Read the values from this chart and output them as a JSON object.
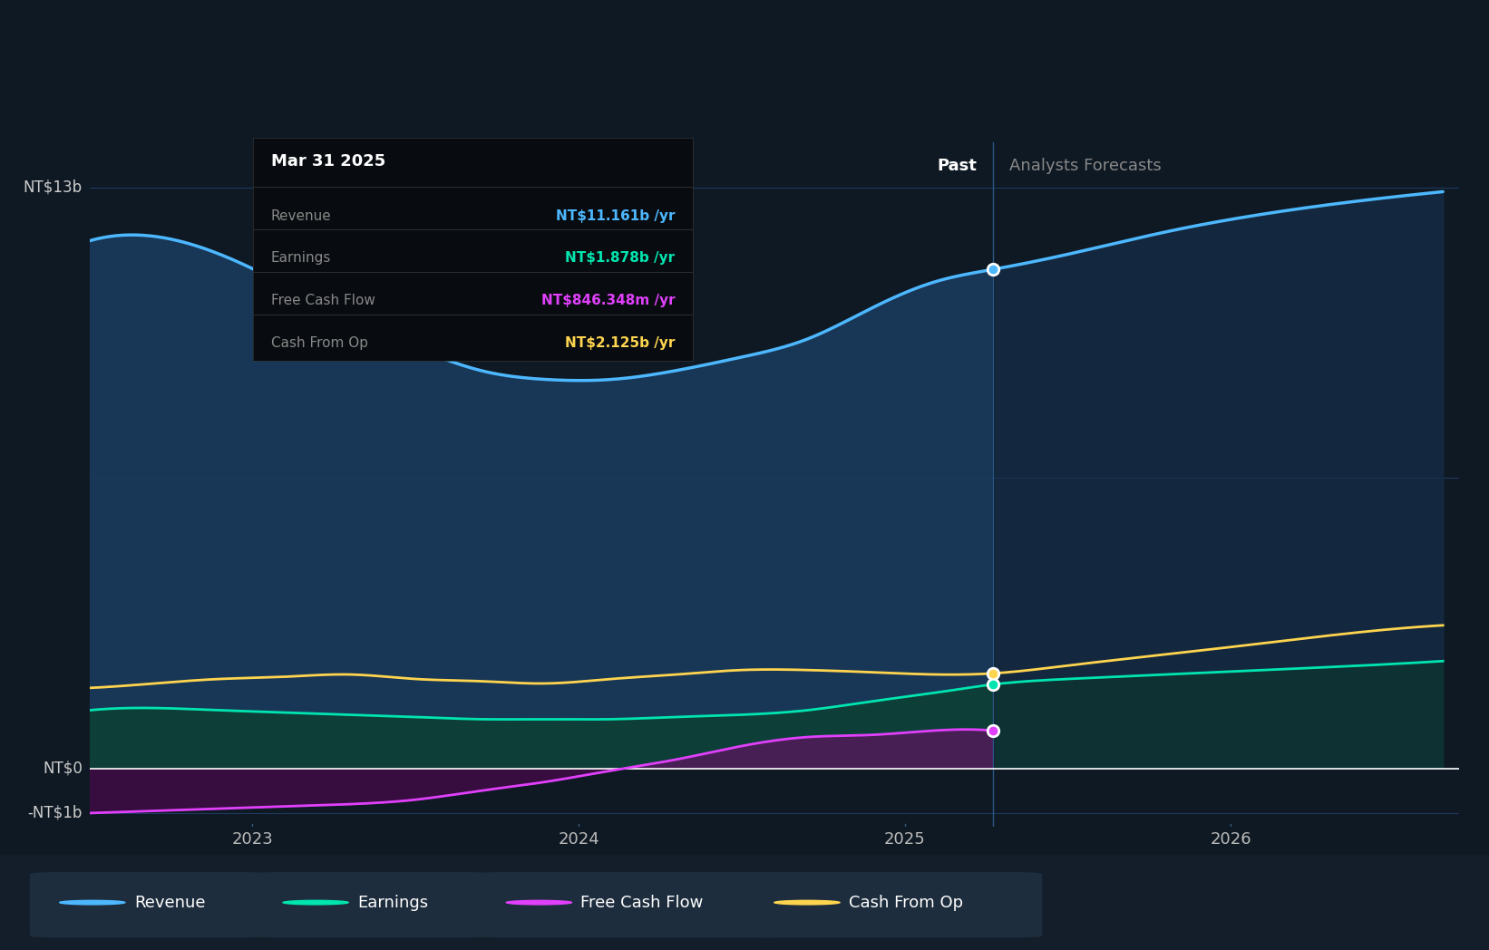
{
  "bg_color": "#0f1923",
  "plot_bg_color": "#0f1923",
  "grid_color": "#1e3a5f",
  "y_label_top": "NT$13b",
  "y_label_zero": "NT$0",
  "y_label_neg": "-NT$1b",
  "divider_x": 2025.27,
  "past_label": "Past",
  "forecast_label": "Analysts Forecasts",
  "tooltip_date": "Mar 31 2025",
  "tooltip_revenue": "NT$11.161b",
  "tooltip_earnings": "NT$1.878b",
  "tooltip_fcf": "NT$846.348m",
  "tooltip_cashop": "NT$2.125b",
  "revenue_color": "#4db8ff",
  "earnings_color": "#00e5b0",
  "fcf_color": "#e040fb",
  "cashop_color": "#ffd54f",
  "revenue_x": [
    2022.5,
    2022.7,
    2022.9,
    2023.1,
    2023.3,
    2023.5,
    2023.7,
    2023.9,
    2024.1,
    2024.3,
    2024.5,
    2024.7,
    2024.9,
    2025.1,
    2025.27,
    2025.5,
    2025.8,
    2026.1,
    2026.4,
    2026.65
  ],
  "revenue_y": [
    11.8,
    11.9,
    11.5,
    10.8,
    10.0,
    9.4,
    8.9,
    8.7,
    8.7,
    8.9,
    9.2,
    9.6,
    10.3,
    10.9,
    11.161,
    11.5,
    12.0,
    12.4,
    12.7,
    12.9
  ],
  "earnings_x": [
    2022.5,
    2022.7,
    2022.9,
    2023.1,
    2023.3,
    2023.5,
    2023.7,
    2023.9,
    2024.1,
    2024.3,
    2024.5,
    2024.7,
    2024.9,
    2025.1,
    2025.27,
    2025.5,
    2025.8,
    2026.1,
    2026.4,
    2026.65
  ],
  "earnings_y": [
    1.3,
    1.35,
    1.3,
    1.25,
    1.2,
    1.15,
    1.1,
    1.1,
    1.1,
    1.15,
    1.2,
    1.3,
    1.5,
    1.7,
    1.878,
    2.0,
    2.1,
    2.2,
    2.3,
    2.4
  ],
  "fcf_x": [
    2022.5,
    2022.7,
    2022.9,
    2023.1,
    2023.3,
    2023.5,
    2023.7,
    2023.9,
    2024.1,
    2024.3,
    2024.5,
    2024.7,
    2024.9,
    2025.1,
    2025.27
  ],
  "fcf_y": [
    -1.0,
    -0.95,
    -0.9,
    -0.85,
    -0.8,
    -0.7,
    -0.5,
    -0.3,
    -0.05,
    0.2,
    0.5,
    0.7,
    0.75,
    0.85,
    0.846
  ],
  "cashop_x": [
    2022.5,
    2022.7,
    2022.9,
    2023.1,
    2023.3,
    2023.5,
    2023.7,
    2023.9,
    2024.1,
    2024.3,
    2024.5,
    2024.7,
    2024.9,
    2025.1,
    2025.27,
    2025.5,
    2025.8,
    2026.1,
    2026.4,
    2026.65
  ],
  "cashop_y": [
    1.8,
    1.9,
    2.0,
    2.05,
    2.1,
    2.0,
    1.95,
    1.9,
    2.0,
    2.1,
    2.2,
    2.2,
    2.15,
    2.1,
    2.125,
    2.3,
    2.55,
    2.8,
    3.05,
    3.2
  ],
  "ylim_min": -1.3,
  "ylim_max": 14.0,
  "xlim_min": 2022.5,
  "xlim_max": 2026.7,
  "legend_items": [
    "Revenue",
    "Earnings",
    "Free Cash Flow",
    "Cash From Op"
  ],
  "legend_colors": [
    "#4db8ff",
    "#00e5b0",
    "#e040fb",
    "#ffd54f"
  ]
}
